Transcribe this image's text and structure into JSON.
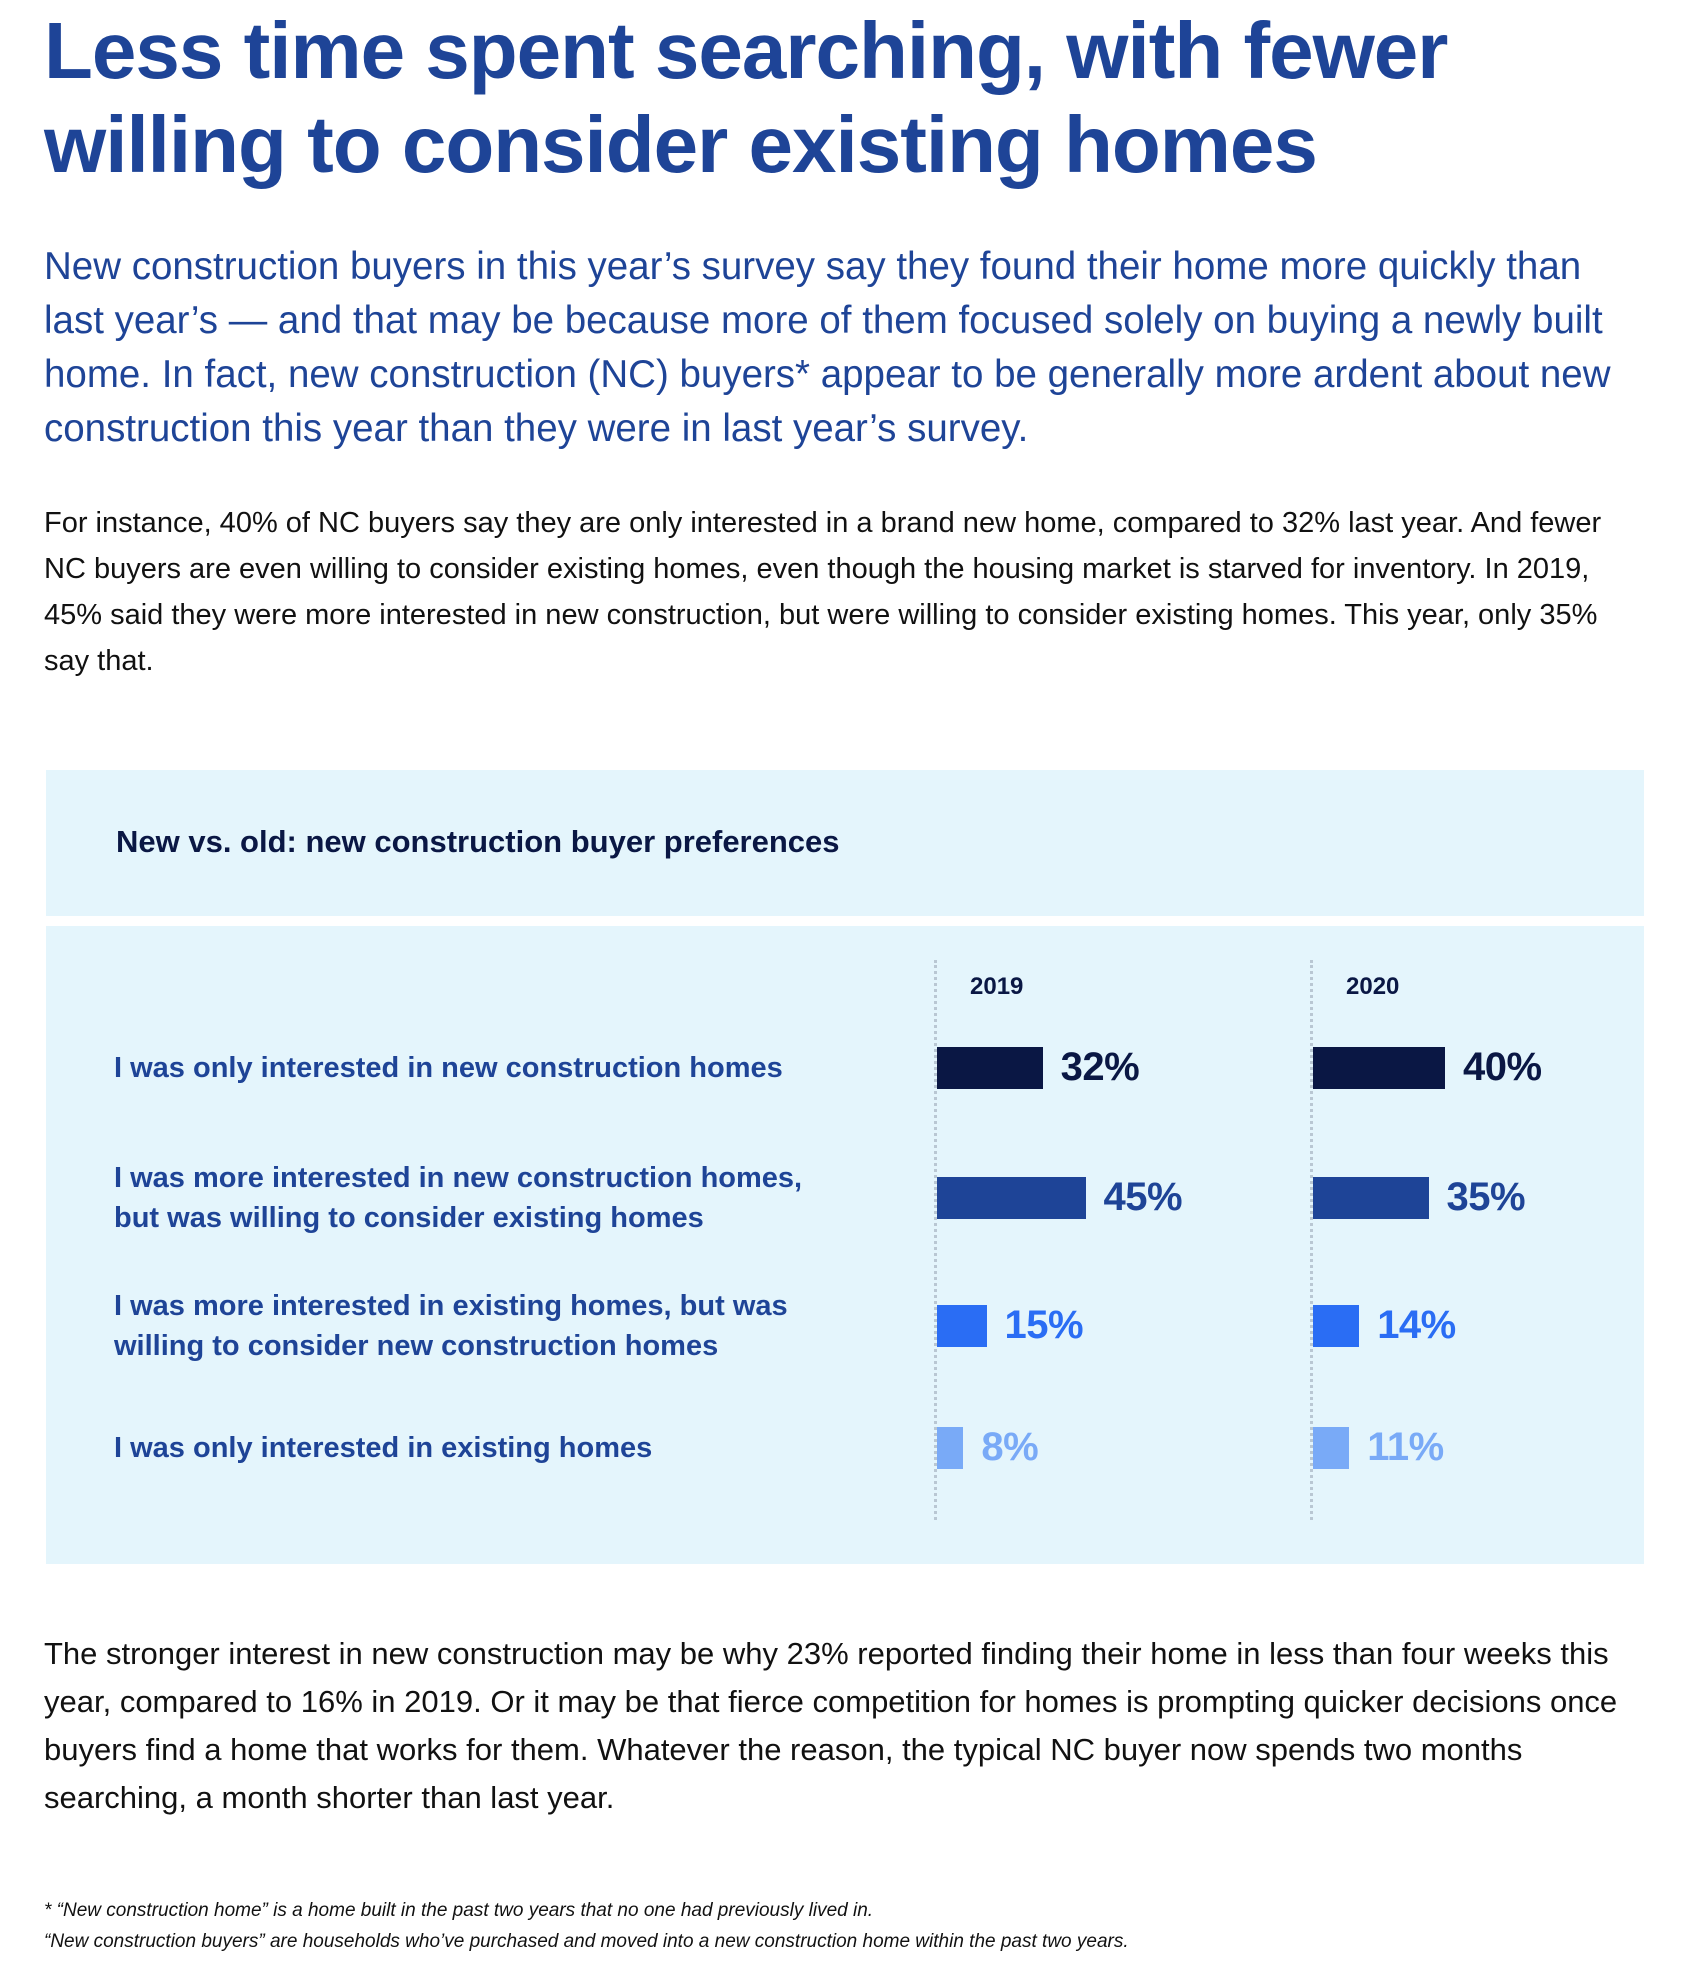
{
  "title": "Less time spent searching, with fewer willing to consider existing homes",
  "lead": "New construction buyers in this year’s survey say they found their home more quickly than last year’s — and that may be because more of them focused solely on buying a newly built home. In fact, new construction (NC) buyers* appear to be generally more ardent about new construction this year than they were in last year’s survey.",
  "paragraph1": "For instance, 40% of NC buyers say they are only interested in a brand new home, compared to 32% last year. And fewer NC buyers are even willing to consider existing homes, even though the housing market is starved for inventory. In 2019, 45% said they were more interested in new construction, but were willing to consider existing homes. This year, only 35% say that.",
  "paragraph2": "The stronger interest in new construction may be why 23% reported finding their home in less than four weeks this year, compared to 16% in 2019. Or it may be that fierce competition for homes is prompting quicker decisions once buyers find a home that works for them. Whatever the reason, the typical NC buyer now spends two months searching, a month shorter than last year.",
  "footnotes": [
    "* “New construction home” is a home built in the past two years that no one had previously lived in.",
    "“New construction buyers” are households who’ve purchased and moved into a new construction home within the past two years."
  ],
  "chart_data": {
    "type": "bar",
    "title": "New vs. old: new construction buyer preferences",
    "categories": [
      "I was only interested in new construction homes",
      "I was more interested in new construction homes, but was willing to consider existing homes",
      "I was more interested in existing homes, but was willing to consider new construction homes",
      "I was only interested in existing homes"
    ],
    "series": [
      {
        "name": "2019",
        "values": [
          32,
          45,
          15,
          8
        ]
      },
      {
        "name": "2020",
        "values": [
          40,
          35,
          14,
          11
        ]
      }
    ],
    "value_suffix": "%",
    "orientation": "horizontal",
    "colors": [
      "#0a1744",
      "#1e4497",
      "#2a6df4",
      "#79aaf7"
    ],
    "grid": false
  }
}
